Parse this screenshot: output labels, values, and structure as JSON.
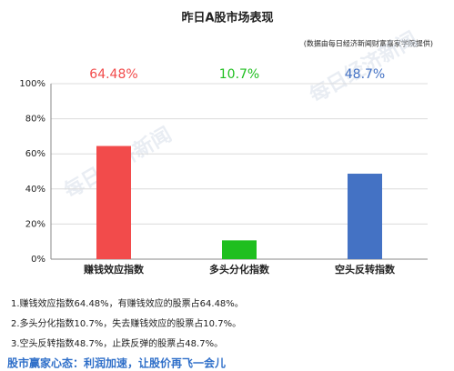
{
  "chart_data": {
    "type": "bar",
    "title": "昨日A股市场表现",
    "subtitle": "(数据由每日经济新闻财富嘉家学院提供)",
    "categories": [
      "赚钱效应指数",
      "多头分化指数",
      "空头反转指数"
    ],
    "values": [
      64.48,
      10.7,
      48.7
    ],
    "value_labels": [
      "64.48%",
      "10.7%",
      "48.7%"
    ],
    "colors": [
      "#f24b4b",
      "#1fbf1f",
      "#4472c4"
    ],
    "ylim": [
      0,
      100
    ],
    "yticks": [
      {
        "value": 0,
        "label": "0%"
      },
      {
        "value": 20,
        "label": "20%"
      },
      {
        "value": 40,
        "label": "40%"
      },
      {
        "value": 60,
        "label": "60%"
      },
      {
        "value": 80,
        "label": "80%"
      },
      {
        "value": 100,
        "label": "100%"
      }
    ],
    "grid": true
  },
  "watermark": "每日经济新闻",
  "notes": [
    "1.赚钱效应指数64.48%，有赚钱效应的股票占64.48%。",
    "2.多头分化指数10.7%，失去赚钱效应的股票占10.7%。",
    "3.空头反转指数48.7%，止跌反弹的股票占48.7%。"
  ],
  "footer": "股市赢家心态：利润加速，让股价再飞一会儿"
}
